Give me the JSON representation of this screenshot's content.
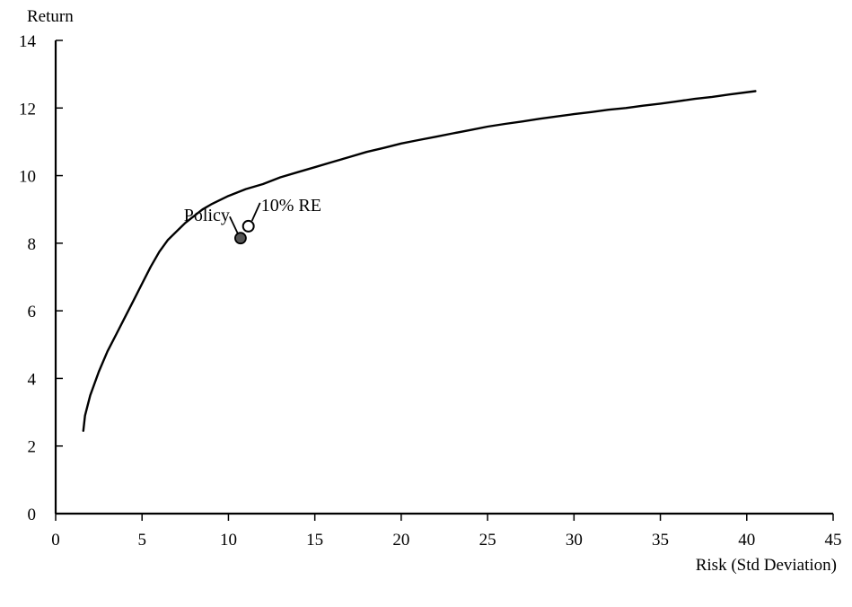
{
  "chart_data": {
    "type": "line",
    "xlabel": "Risk (Std Deviation)",
    "ylabel": "Return",
    "xlim": [
      0,
      45
    ],
    "ylim": [
      0,
      14
    ],
    "x_ticks": [
      0,
      5,
      10,
      15,
      20,
      25,
      30,
      35,
      40,
      45
    ],
    "y_ticks": [
      0,
      2,
      4,
      6,
      8,
      10,
      12,
      14
    ],
    "grid": false,
    "legend": "none",
    "series": [
      {
        "x": [
          1.6,
          1.7,
          2.0,
          2.5,
          3.0,
          3.5,
          4.0,
          4.5,
          5.0,
          5.5,
          6.0,
          6.5,
          7.0,
          7.5,
          8.0,
          8.5,
          9.0,
          10.0,
          11.0,
          12.0,
          13.0,
          14.0,
          15.0,
          16.0,
          17.0,
          18.0,
          19.0,
          20.0,
          21.0,
          22.0,
          23.0,
          24.0,
          25.0,
          26.0,
          27.0,
          28.0,
          29.0,
          30.0,
          31.0,
          32.0,
          33.0,
          34.0,
          35.0,
          36.0,
          37.0,
          38.0,
          39.0,
          40.5
        ],
        "y": [
          2.45,
          2.9,
          3.5,
          4.2,
          4.8,
          5.3,
          5.8,
          6.3,
          6.8,
          7.3,
          7.75,
          8.1,
          8.35,
          8.6,
          8.8,
          9.0,
          9.15,
          9.4,
          9.6,
          9.75,
          9.95,
          10.1,
          10.25,
          10.4,
          10.55,
          10.7,
          10.82,
          10.95,
          11.05,
          11.15,
          11.25,
          11.35,
          11.45,
          11.53,
          11.6,
          11.68,
          11.75,
          11.82,
          11.88,
          11.95,
          12.0,
          12.07,
          12.13,
          12.2,
          12.27,
          12.33,
          12.4,
          12.5
        ]
      }
    ],
    "points": [
      {
        "label": "Policy",
        "x": 10.7,
        "y": 8.15,
        "filled": true
      },
      {
        "label": "10% RE",
        "x": 11.0,
        "y": 8.45,
        "filled": false
      }
    ]
  }
}
